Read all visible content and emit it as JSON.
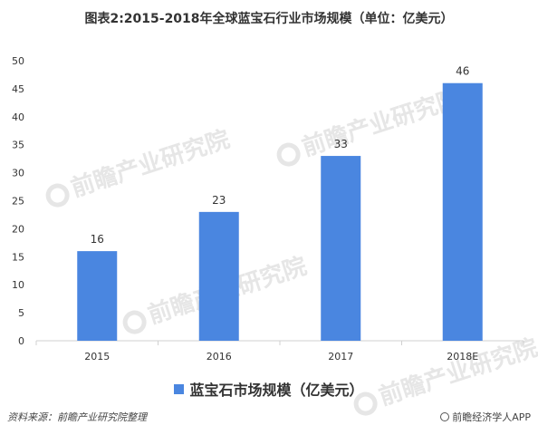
{
  "title": "图表2:2015-2018年全球蓝宝石行业市场规模（单位：亿美元）",
  "watermark": "前瞻产业研究院",
  "source": "资料来源：前瞻产业研究院整理",
  "brand": "前瞻经济学人APP",
  "colors": {
    "bar": "#4a86e0",
    "axis": "#d0d0d0",
    "text": "#333333"
  },
  "chart_data": {
    "type": "bar",
    "title": "图表2:2015-2018年全球蓝宝石行业市场规模（单位：亿美元）",
    "categories": [
      "2015",
      "2016",
      "2017",
      "2018E"
    ],
    "series": [
      {
        "name": "蓝宝石市场规模（亿美元）",
        "values": [
          16,
          23,
          33,
          46
        ]
      }
    ],
    "y_ticks": [
      "0",
      "5",
      "10",
      "15",
      "20",
      "25",
      "30",
      "35",
      "40",
      "45",
      "50"
    ],
    "ylim": [
      0,
      50
    ],
    "xlabel": "",
    "ylabel": "",
    "grid": false,
    "legend": "bottom",
    "data_labels": true
  }
}
